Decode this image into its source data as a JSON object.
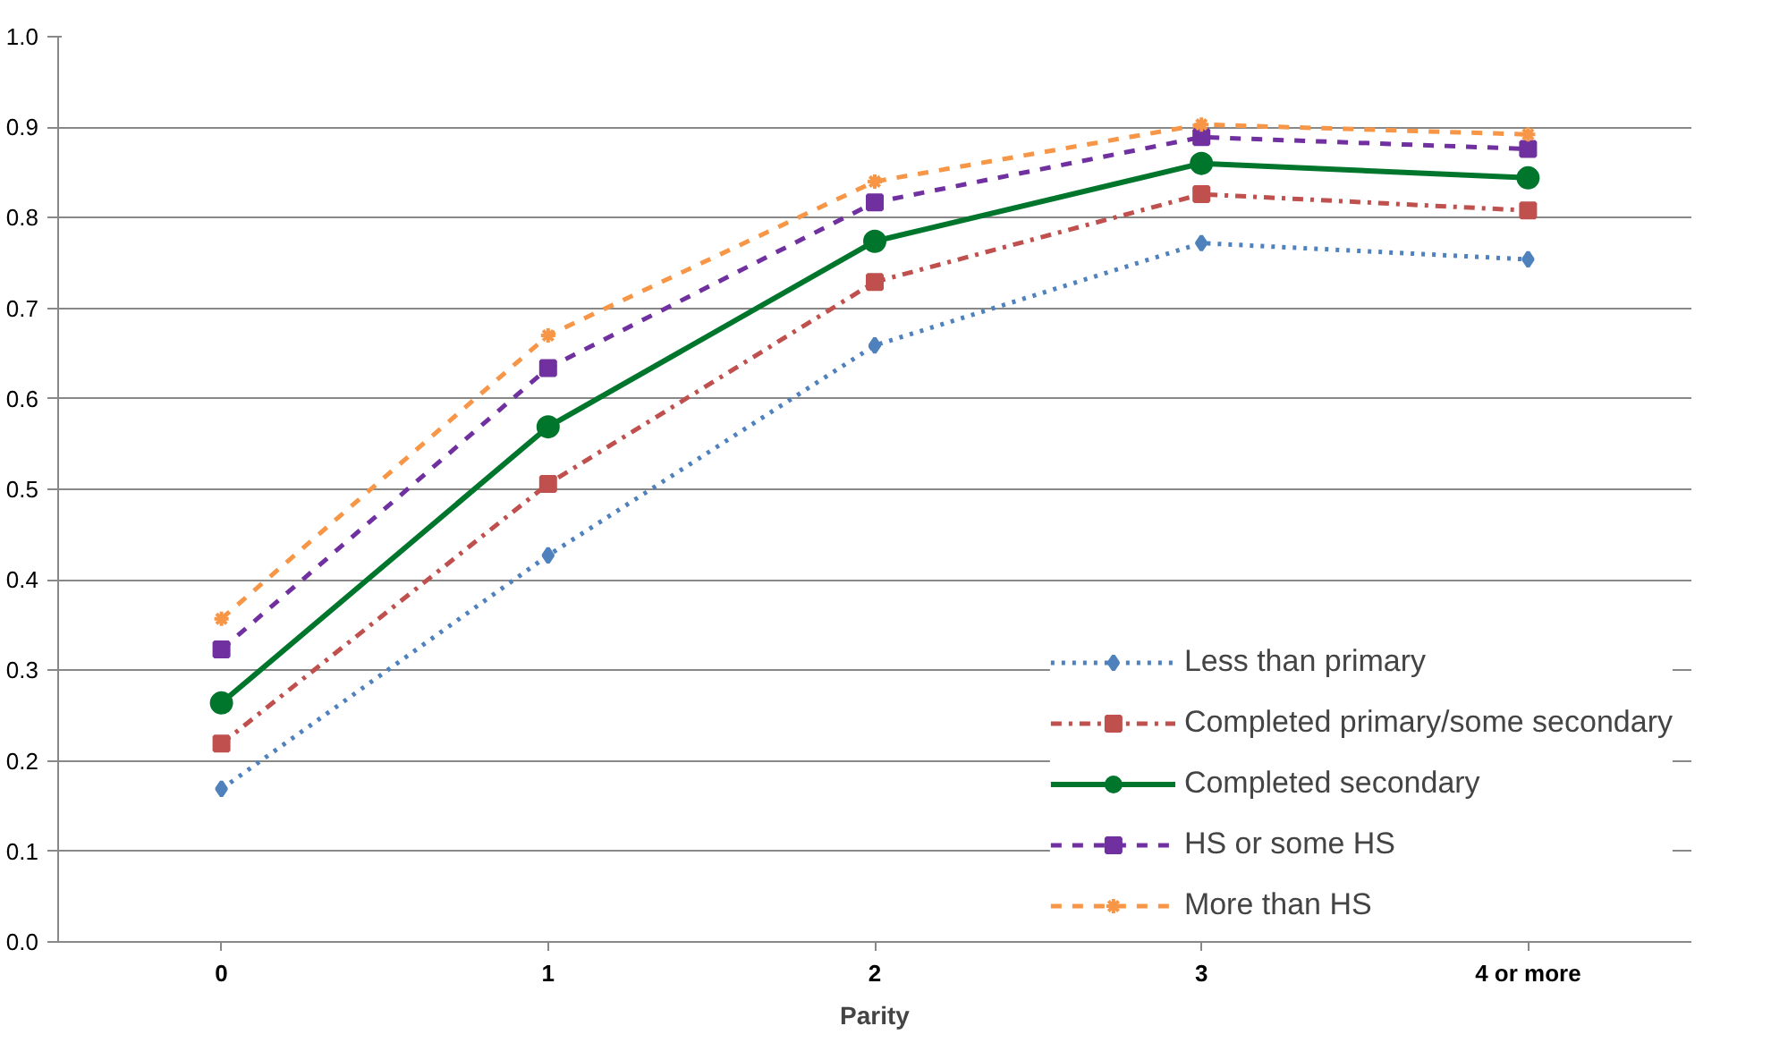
{
  "chart_data": {
    "type": "line",
    "xlabel": "Parity",
    "categories": [
      "0",
      "1",
      "2",
      "3",
      "4 or more"
    ],
    "ylim": [
      0,
      1
    ],
    "yticks": [
      {
        "value": 0,
        "label": "0.0"
      },
      0.1,
      0.2,
      0.3,
      0.4,
      0.5,
      0.6,
      0.7,
      0.8,
      0.9,
      {
        "value": 1,
        "label": "1.0"
      }
    ],
    "grid": "y",
    "legend": "bottom right",
    "series": [
      {
        "name": "Less than primary",
        "color": "#4f81bd",
        "marker": "diamond",
        "line_style": "dotted",
        "values": [
          0.169,
          0.427,
          0.659,
          0.772,
          0.754
        ]
      },
      {
        "name": "Completed primary/some secondary",
        "color": "#c0504d",
        "marker": "square",
        "line_style": "dashdot",
        "values": [
          0.219,
          0.506,
          0.729,
          0.826,
          0.808
        ]
      },
      {
        "name": "Completed secondary",
        "color": "#00762d",
        "marker": "circle",
        "line_style": "solid",
        "values": [
          0.264,
          0.569,
          0.774,
          0.86,
          0.844
        ]
      },
      {
        "name": "HS or some HS",
        "color": "#7030a0",
        "marker": "square",
        "line_style": "dashed",
        "values": [
          0.323,
          0.634,
          0.817,
          0.889,
          0.876
        ]
      },
      {
        "name": "More than HS",
        "color": "#f79646",
        "marker": "cross",
        "line_style": "dashed",
        "values": [
          0.357,
          0.67,
          0.84,
          0.903,
          0.892
        ]
      }
    ]
  }
}
